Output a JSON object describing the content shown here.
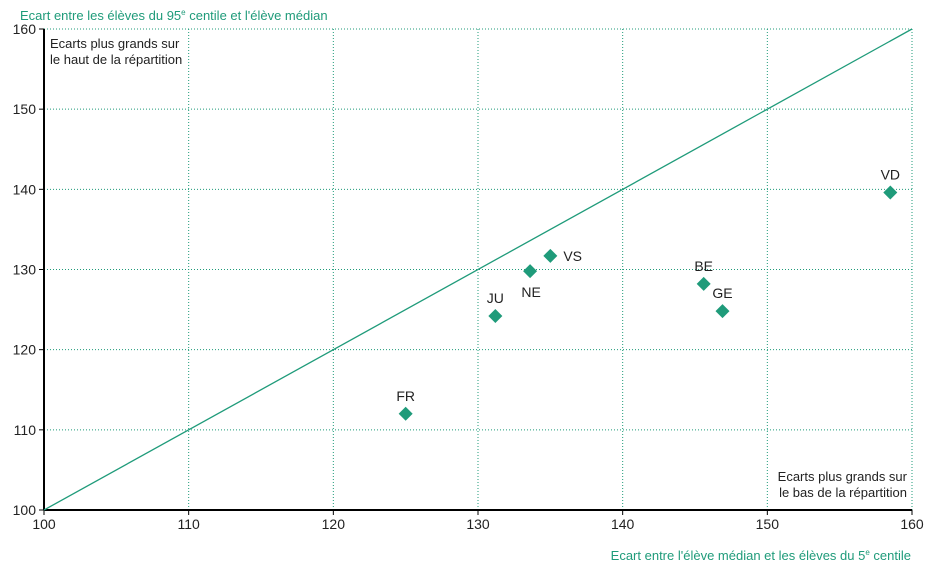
{
  "chart_data": {
    "type": "scatter",
    "ylabel_parts": [
      "Ecart entre les élèves du 95",
      "e",
      " centile et l'élève médian"
    ],
    "xlabel_parts": [
      "Ecart entre l'élève médian et les élèves du 5",
      "e",
      " centile"
    ],
    "annotations": {
      "top_left": [
        "Ecarts plus grands sur",
        "le haut de la répartition"
      ],
      "bottom_right": [
        "Ecarts plus grands sur",
        "le bas de la répartition"
      ]
    },
    "xlim": [
      100,
      160
    ],
    "ylim": [
      100,
      160
    ],
    "xticks": [
      "100",
      "110",
      "120",
      "130",
      "140",
      "150",
      "160"
    ],
    "yticks": [
      "100",
      "110",
      "120",
      "130",
      "140",
      "150",
      "160"
    ],
    "grid": true,
    "diagonal_line": true,
    "marker": "diamond",
    "color": "#1f9b7a",
    "points": [
      {
        "label": "FR",
        "x": 125.0,
        "y": 112.0
      },
      {
        "label": "JU",
        "x": 131.2,
        "y": 124.2
      },
      {
        "label": "NE",
        "x": 133.6,
        "y": 129.8
      },
      {
        "label": "VS",
        "x": 135.0,
        "y": 131.7
      },
      {
        "label": "BE",
        "x": 145.6,
        "y": 128.2
      },
      {
        "label": "GE",
        "x": 146.9,
        "y": 124.8
      },
      {
        "label": "VD",
        "x": 158.5,
        "y": 139.6
      }
    ]
  }
}
